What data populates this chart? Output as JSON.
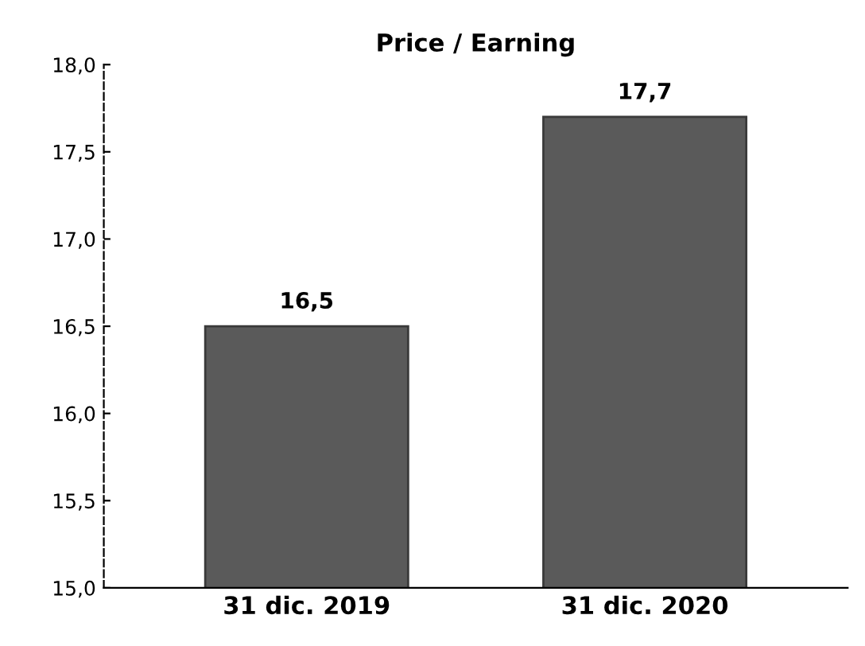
{
  "chart_data": {
    "type": "bar",
    "title": "Price / Earning",
    "categories": [
      "31 dic. 2019",
      "31 dic. 2020"
    ],
    "values": [
      16.5,
      17.7
    ],
    "color": "#5a5a5a",
    "value_labels": [
      "16,5",
      "17,7"
    ],
    "ylim": [
      15.0,
      18.0
    ],
    "yticks": [
      {
        "value": 15.0,
        "label": "15,0"
      },
      {
        "value": 15.5,
        "label": "15,5"
      },
      {
        "value": 16.0,
        "label": "16,0"
      },
      {
        "value": 16.5,
        "label": "16,5"
      },
      {
        "value": 17.0,
        "label": "17,0"
      },
      {
        "value": 17.5,
        "label": "17,5"
      },
      {
        "value": 18.0,
        "label": "18,0"
      }
    ],
    "grid": false,
    "legend": false
  }
}
